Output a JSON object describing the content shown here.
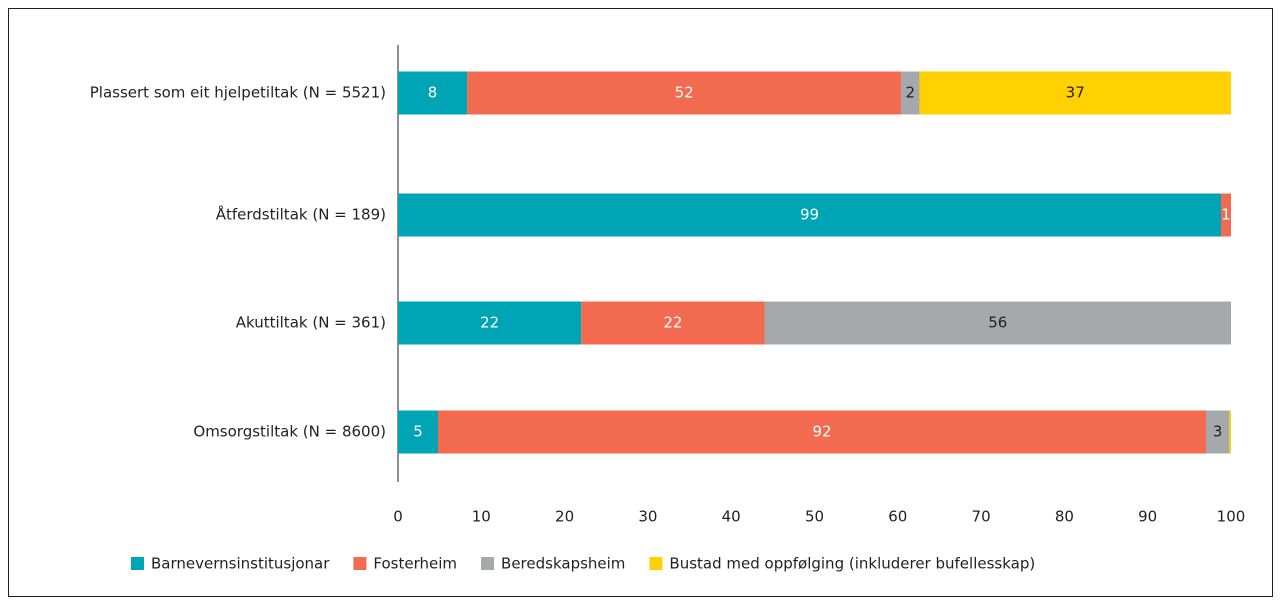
{
  "chart_data": {
    "type": "stacked_barh",
    "categories": [
      "Plassert som eit hjelpetiltak (N = 5521)",
      "Åtferdstiltak (N = 189)",
      "Akuttiltak (N = 361)",
      "Omsorgstiltak (N = 8600)"
    ],
    "series": [
      {
        "name": "Barnevernsinstitusjonar",
        "color": "#00a5b5",
        "values": [
          8.3,
          98.8,
          22,
          4.8
        ],
        "value_labels": [
          "8",
          "99",
          "22",
          "5"
        ]
      },
      {
        "name": "Fosterheim",
        "color": "#f26b50",
        "values": [
          52.1,
          1.2,
          22,
          92.2
        ],
        "value_labels": [
          "52",
          "1",
          "22",
          "92"
        ]
      },
      {
        "name": "Beredskapsheim",
        "color": "#a6a8ab",
        "values": [
          2.2,
          0,
          56,
          2.8
        ],
        "value_labels": [
          "2",
          null,
          "56",
          "3"
        ]
      },
      {
        "name": "Bustad med oppfølging (inkluderer bufellesskap)",
        "color": "#ffd100",
        "values": [
          37.4,
          0,
          0,
          0.2
        ],
        "value_labels": [
          "37",
          null,
          null,
          null
        ]
      }
    ],
    "xlim": [
      0,
      100
    ],
    "xticks": [
      0,
      10,
      20,
      30,
      40,
      50,
      60,
      70,
      80,
      90,
      100
    ],
    "grid": false,
    "legend": "bottom"
  }
}
